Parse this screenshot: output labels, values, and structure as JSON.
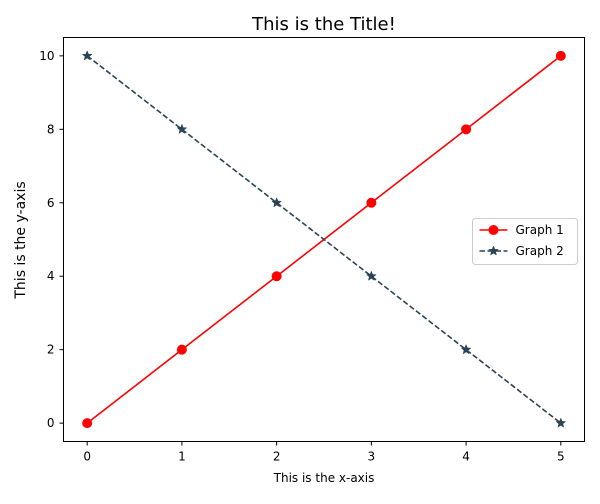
{
  "chart_data": {
    "type": "line",
    "title": "This is the Title!",
    "xlabel": "This is the x-axis",
    "ylabel": "This is the y-axis",
    "xlim": [
      -0.25,
      5.25
    ],
    "ylim": [
      -0.5,
      10.5
    ],
    "x_ticks": [
      0,
      1,
      2,
      3,
      4,
      5
    ],
    "y_ticks": [
      0,
      2,
      4,
      6,
      8,
      10
    ],
    "grid": false,
    "legend_position": "center-right",
    "series": [
      {
        "name": "Graph 1",
        "x": [
          0,
          1,
          2,
          3,
          4,
          5
        ],
        "values": [
          0,
          2,
          4,
          6,
          8,
          10
        ],
        "color": "#ff0000",
        "linestyle": "solid",
        "marker": "circle"
      },
      {
        "name": "Graph 2",
        "x": [
          0,
          1,
          2,
          3,
          4,
          5
        ],
        "values": [
          10,
          8,
          6,
          4,
          2,
          0
        ],
        "color": "#2a4453",
        "linestyle": "dashed",
        "marker": "star"
      }
    ]
  }
}
